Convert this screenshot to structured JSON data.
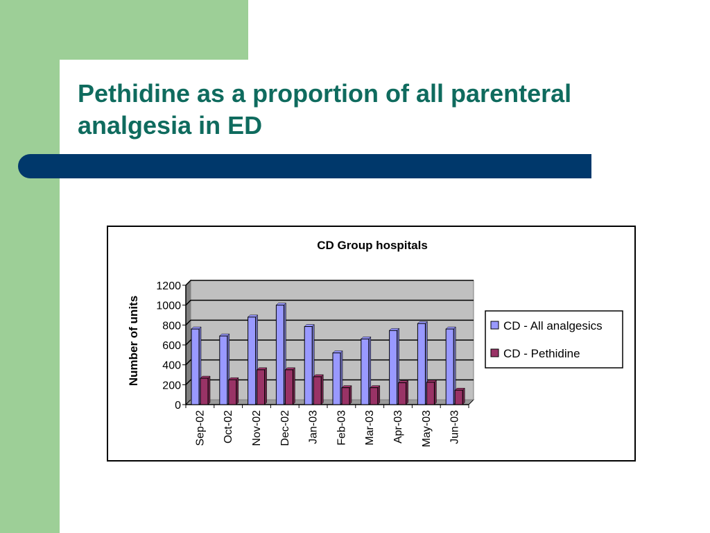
{
  "slide": {
    "title": "Pethidine as a proportion of all parenteral analgesia in ED"
  },
  "colors": {
    "side_green": "#9dcf97",
    "title_teal": "#0f6b5e",
    "band_navy": "#00386b",
    "plot_bg": "#c0c0c0",
    "series_all": "#9999ff",
    "series_pethidine": "#993366"
  },
  "chart_data": {
    "type": "bar",
    "title": "CD Group hospitals",
    "ylabel": "Number of units",
    "xlabel": "",
    "ylim": [
      0,
      1200
    ],
    "yticks": [
      0,
      200,
      400,
      600,
      800,
      1000,
      1200
    ],
    "grid": true,
    "legend_position": "right",
    "categories": [
      "Sep-02",
      "Oct-02",
      "Nov-02",
      "Dec-02",
      "Jan-03",
      "Feb-03",
      "Mar-03",
      "Apr-03",
      "May-03",
      "Jun-03"
    ],
    "series": [
      {
        "name": "CD - All analgesics",
        "values": [
          760,
          690,
          880,
          1000,
          785,
          520,
          660,
          745,
          815,
          760
        ]
      },
      {
        "name": "CD - Pethidine",
        "values": [
          265,
          250,
          350,
          350,
          280,
          170,
          170,
          220,
          225,
          145
        ]
      }
    ]
  }
}
